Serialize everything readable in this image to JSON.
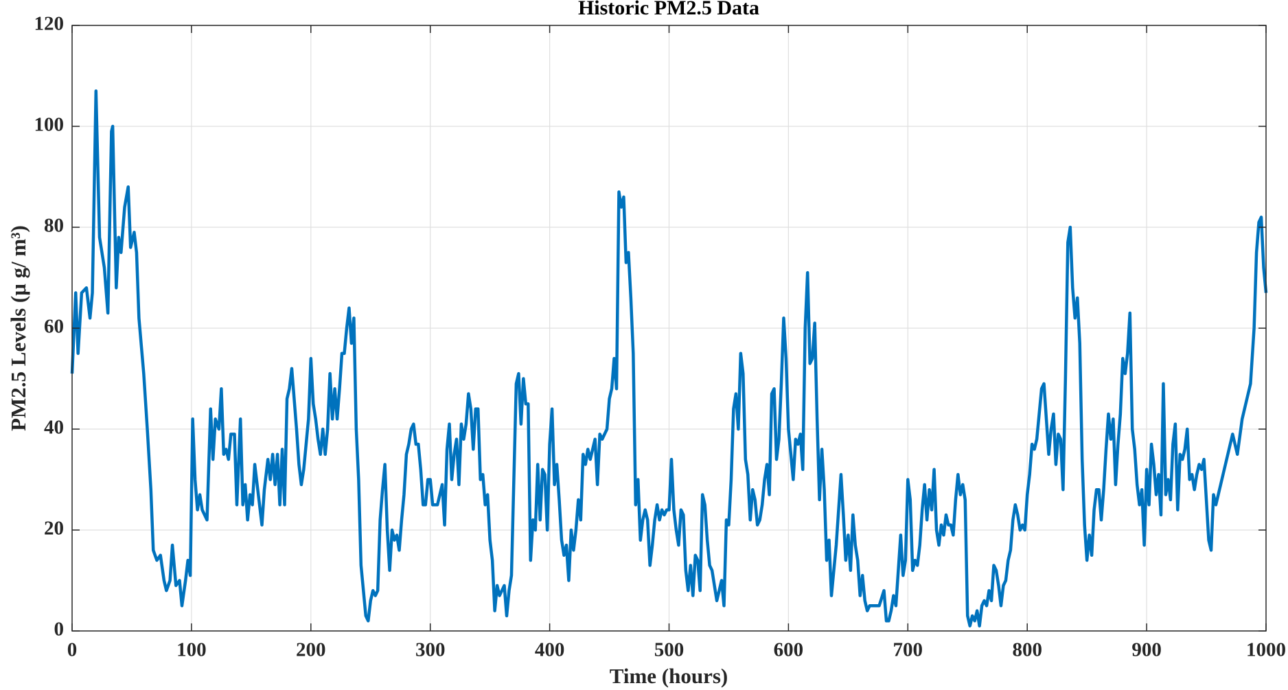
{
  "chart_data": {
    "type": "line",
    "title": "Historic PM2.5 Data",
    "xlabel": "Time (hours)",
    "ylabel": "PM2.5 Levels (μ g/ m³)",
    "color": "#0072bd",
    "grid": true,
    "xlim": [
      0,
      1000
    ],
    "xticks": [
      0,
      100,
      200,
      300,
      400,
      500,
      600,
      700,
      800,
      900,
      1000
    ],
    "ylim": [
      0,
      120
    ],
    "yticks": [
      0,
      20,
      40,
      60,
      80,
      100,
      120
    ],
    "x": [
      0,
      3,
      5,
      8,
      12,
      15,
      17,
      20,
      23,
      27,
      30,
      33,
      34,
      37,
      39,
      41,
      44,
      47,
      49,
      52,
      54,
      56,
      60,
      63,
      66,
      68,
      71,
      74,
      77,
      79,
      82,
      84,
      87,
      90,
      92,
      95,
      97,
      99,
      101,
      103,
      105,
      107,
      109,
      113,
      116,
      118,
      120,
      123,
      125,
      127,
      129,
      131,
      133,
      136,
      138,
      141,
      143,
      145,
      147,
      149,
      151,
      153,
      155,
      157,
      159,
      161,
      164,
      166,
      168,
      170,
      172,
      174,
      176,
      178,
      180,
      182,
      184,
      186,
      188,
      190,
      192,
      194,
      198,
      200,
      202,
      204,
      206,
      208,
      210,
      212,
      214,
      216,
      218,
      220,
      222,
      224,
      226,
      228,
      230,
      232,
      234,
      236,
      238,
      240,
      242,
      244,
      246,
      248,
      250,
      252,
      254,
      256,
      258,
      260,
      262,
      264,
      266,
      268,
      270,
      272,
      274,
      276,
      278,
      280,
      282,
      284,
      286,
      288,
      290,
      292,
      294,
      296,
      298,
      300,
      302,
      306,
      308,
      310,
      312,
      314,
      316,
      318,
      320,
      322,
      324,
      326,
      328,
      330,
      332,
      334,
      336,
      338,
      340,
      342,
      344,
      346,
      348,
      350,
      352,
      354,
      356,
      358,
      360,
      362,
      364,
      366,
      368,
      370,
      372,
      374,
      376,
      378,
      380,
      382,
      384,
      386,
      388,
      390,
      392,
      394,
      396,
      398,
      400,
      402,
      404,
      406,
      408,
      410,
      412,
      414,
      416,
      418,
      420,
      422,
      424,
      426,
      428,
      430,
      432,
      434,
      436,
      438,
      440,
      442,
      444,
      446,
      448,
      450,
      452,
      454,
      456,
      458,
      460,
      462,
      464,
      466,
      468,
      470,
      472,
      474,
      476,
      478,
      480,
      482,
      484,
      486,
      488,
      490,
      492,
      494,
      496,
      498,
      500,
      502,
      504,
      506,
      508,
      510,
      512,
      514,
      516,
      518,
      520,
      522,
      524,
      526,
      528,
      530,
      532,
      534,
      536,
      538,
      540,
      542,
      544,
      546,
      548,
      550,
      552,
      554,
      556,
      558,
      560,
      562,
      564,
      566,
      568,
      570,
      572,
      574,
      576,
      578,
      580,
      582,
      584,
      586,
      588,
      590,
      592,
      594,
      596,
      598,
      600,
      602,
      604,
      606,
      608,
      610,
      612,
      614,
      616,
      618,
      620,
      622,
      624,
      626,
      628,
      630,
      632,
      634,
      636,
      638,
      640,
      642,
      644,
      646,
      648,
      650,
      652,
      654,
      656,
      658,
      660,
      662,
      664,
      666,
      668,
      672,
      676,
      680,
      682,
      684,
      686,
      688,
      690,
      692,
      694,
      696,
      698,
      700,
      702,
      704,
      706,
      708,
      710,
      712,
      714,
      716,
      718,
      720,
      722,
      724,
      726,
      728,
      730,
      732,
      734,
      736,
      738,
      740,
      742,
      744,
      746,
      748,
      750,
      752,
      754,
      756,
      758,
      760,
      762,
      764,
      766,
      768,
      770,
      772,
      774,
      776,
      778,
      780,
      782,
      784,
      786,
      788,
      790,
      792,
      794,
      796,
      798,
      800,
      802,
      804,
      806,
      808,
      810,
      812,
      814,
      816,
      818,
      820,
      822,
      824,
      826,
      828,
      830,
      832,
      834,
      836,
      838,
      840,
      842,
      844,
      846,
      848,
      850,
      852,
      854,
      856,
      858,
      860,
      862,
      864,
      866,
      868,
      870,
      872,
      874,
      876,
      878,
      880,
      882,
      884,
      886,
      888,
      890,
      892,
      894,
      896,
      898,
      900,
      902,
      904,
      906,
      908,
      910,
      912,
      914,
      916,
      918,
      920,
      922,
      924,
      926,
      928,
      930,
      932,
      934,
      936,
      938,
      940,
      942,
      944,
      946,
      948,
      950,
      952,
      954,
      956,
      958,
      960,
      964,
      968,
      972,
      976,
      980,
      984,
      987,
      990,
      992,
      994,
      996,
      998,
      1000
    ],
    "values": [
      51,
      67,
      55,
      67,
      68,
      62,
      67,
      107,
      78,
      72,
      63,
      99,
      100,
      68,
      78,
      75,
      84,
      88,
      76,
      79,
      75,
      62,
      51,
      40,
      28,
      16,
      14,
      15,
      10,
      8,
      10,
      17,
      9,
      10,
      5,
      10,
      14,
      11,
      42,
      30,
      24,
      27,
      24,
      22,
      44,
      34,
      42,
      40,
      48,
      35,
      36,
      34,
      39,
      39,
      25,
      42,
      25,
      29,
      22,
      27,
      25,
      33,
      29,
      25,
      21,
      28,
      34,
      30,
      35,
      29,
      35,
      25,
      36,
      25,
      46,
      48,
      52,
      46,
      40,
      33,
      29,
      32,
      42,
      54,
      45,
      42,
      38,
      35,
      40,
      35,
      40,
      51,
      42,
      48,
      42,
      48,
      55,
      55,
      60,
      64,
      57,
      62,
      40,
      30,
      13,
      8,
      3,
      2,
      6,
      8,
      7,
      8,
      22,
      28,
      33,
      20,
      12,
      20,
      18,
      19,
      16,
      22,
      27,
      35,
      37,
      40,
      41,
      37,
      37,
      32,
      25,
      25,
      30,
      30,
      25,
      25,
      27,
      29,
      21,
      36,
      41,
      30,
      35,
      38,
      29,
      41,
      38,
      41,
      47,
      44,
      36,
      44,
      44,
      30,
      31,
      25,
      27,
      18,
      14,
      4,
      9,
      7,
      8,
      9,
      3,
      8,
      11,
      30,
      49,
      51,
      41,
      50,
      45,
      45,
      14,
      22,
      20,
      33,
      22,
      32,
      31,
      20,
      37,
      44,
      29,
      33,
      26,
      18,
      15,
      17,
      10,
      20,
      16,
      20,
      26,
      22,
      35,
      33,
      36,
      34,
      36,
      38,
      29,
      39,
      38,
      39,
      40,
      46,
      48,
      54,
      48,
      87,
      84,
      86,
      73,
      75,
      66,
      55,
      25,
      30,
      18,
      22,
      24,
      22,
      13,
      17,
      22,
      25,
      22,
      24,
      23,
      24,
      24,
      34,
      24,
      20,
      17,
      24,
      23,
      12,
      8,
      13,
      7,
      15,
      14,
      8,
      27,
      25,
      18,
      13,
      12,
      9,
      6,
      8,
      10,
      5,
      22,
      21,
      30,
      44,
      47,
      40,
      55,
      51,
      34,
      31,
      22,
      28,
      26,
      21,
      22,
      25,
      30,
      33,
      27,
      47,
      48,
      34,
      38,
      49,
      62,
      54,
      40,
      35,
      30,
      38,
      37,
      39,
      32,
      60,
      71,
      53,
      54,
      61,
      42,
      26,
      36,
      28,
      14,
      18,
      7,
      12,
      17,
      24,
      31,
      23,
      14,
      19,
      12,
      23,
      17,
      14,
      7,
      11,
      6,
      4,
      5,
      5,
      5,
      8,
      2,
      2,
      4,
      7,
      5,
      12,
      19,
      11,
      14,
      30,
      26,
      12,
      14,
      13,
      17,
      24,
      29,
      22,
      28,
      24,
      32,
      20,
      17,
      21,
      19,
      23,
      21,
      21,
      19,
      26,
      31,
      27,
      29,
      26,
      3,
      1,
      3,
      2,
      4,
      1,
      5,
      6,
      5,
      8,
      6,
      13,
      12,
      9,
      5,
      9,
      10,
      14,
      16,
      22,
      25,
      23,
      20,
      21,
      20,
      27,
      31,
      37,
      36,
      38,
      43,
      48,
      49,
      42,
      35,
      40,
      43,
      33,
      39,
      38,
      28,
      50,
      77,
      80,
      68,
      62,
      66,
      57,
      34,
      21,
      14,
      19,
      15,
      24,
      28,
      28,
      22,
      28,
      36,
      43,
      38,
      42,
      29,
      37,
      43,
      54,
      51,
      55,
      63,
      40,
      36,
      29,
      25,
      28,
      17,
      32,
      25,
      37,
      33,
      27,
      31,
      23,
      49,
      27,
      30,
      26,
      37,
      41,
      24,
      35,
      34,
      36,
      40,
      30,
      31,
      28,
      31,
      33,
      32,
      34,
      26,
      18,
      16,
      27,
      25,
      27,
      31,
      35,
      39,
      35,
      42,
      46,
      49,
      60,
      75,
      81,
      82,
      72,
      67
    ]
  }
}
